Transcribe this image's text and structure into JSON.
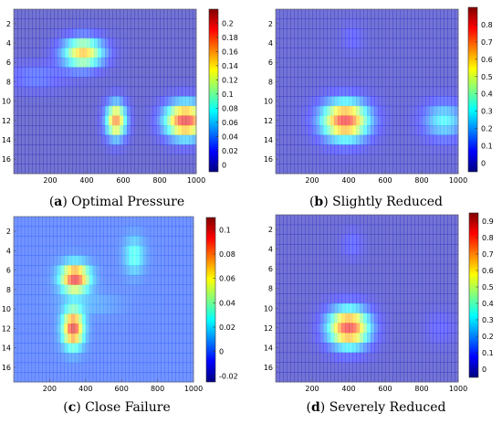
{
  "chart_data": [
    {
      "type": "heatmap",
      "caption_letter": "a",
      "caption_text": "Optimal Pressure",
      "xlim": [
        0,
        1000
      ],
      "ylim": [
        17.5,
        0.5
      ],
      "x_ticks": [
        "200",
        "400",
        "600",
        "800",
        "1000"
      ],
      "y_ticks": [
        "2",
        "4",
        "6",
        "8",
        "10",
        "12",
        "14",
        "16"
      ],
      "colorbar": {
        "min": -0.01,
        "max": 0.22,
        "ticks": [
          "0",
          "0.02",
          "0.04",
          "0.06",
          "0.08",
          "0.1",
          "0.12",
          "0.14",
          "0.16",
          "0.18",
          "0.2"
        ]
      },
      "background": 0.0,
      "blobs": [
        {
          "x": 380,
          "y": 5.0,
          "sx": 80,
          "sy": 1.1,
          "value": 0.15
        },
        {
          "x": 120,
          "y": 7.5,
          "sx": 120,
          "sy": 1.0,
          "value": 0.03
        },
        {
          "x": 560,
          "y": 12.0,
          "sx": 40,
          "sy": 1.3,
          "value": 0.17
        },
        {
          "x": 940,
          "y": 12.0,
          "sx": 80,
          "sy": 1.3,
          "value": 0.2
        }
      ]
    },
    {
      "type": "heatmap",
      "caption_letter": "b",
      "caption_text": "Slightly Reduced",
      "xlim": [
        0,
        1000
      ],
      "ylim": [
        17.5,
        0.5
      ],
      "x_ticks": [
        "200",
        "400",
        "600",
        "800",
        "1000"
      ],
      "y_ticks": [
        "2",
        "4",
        "6",
        "8",
        "10",
        "12",
        "14",
        "16"
      ],
      "colorbar": {
        "min": -0.05,
        "max": 0.9,
        "ticks": [
          "0",
          "0.1",
          "0.2",
          "0.3",
          "0.4",
          "0.5",
          "0.6",
          "0.7",
          "0.8"
        ]
      },
      "background": 0.0,
      "blobs": [
        {
          "x": 420,
          "y": 3.5,
          "sx": 40,
          "sy": 1.0,
          "value": 0.08
        },
        {
          "x": 380,
          "y": 12.0,
          "sx": 90,
          "sy": 1.4,
          "value": 0.8
        },
        {
          "x": 920,
          "y": 12.0,
          "sx": 80,
          "sy": 1.3,
          "value": 0.3
        }
      ]
    },
    {
      "type": "heatmap",
      "caption_letter": "c",
      "caption_text": "Close Failure",
      "xlim": [
        0,
        1000
      ],
      "ylim": [
        17.5,
        0.5
      ],
      "x_ticks": [
        "200",
        "400",
        "600",
        "800",
        "1000"
      ],
      "y_ticks": [
        "2",
        "4",
        "6",
        "8",
        "10",
        "12",
        "14",
        "16"
      ],
      "colorbar": {
        "min": -0.025,
        "max": 0.11,
        "ticks": [
          "-0.02",
          "0",
          "0.02",
          "0.04",
          "0.06",
          "0.08",
          "0.1"
        ]
      },
      "background": 0.0,
      "blobs": [
        {
          "x": 340,
          "y": 6.8,
          "sx": 55,
          "sy": 1.0,
          "value": 0.1
        },
        {
          "x": 330,
          "y": 12.0,
          "sx": 40,
          "sy": 1.3,
          "value": 0.1
        },
        {
          "x": 670,
          "y": 4.5,
          "sx": 40,
          "sy": 1.3,
          "value": 0.03
        },
        {
          "x": 420,
          "y": 9.5,
          "sx": 120,
          "sy": 0.8,
          "value": 0.01
        }
      ]
    },
    {
      "type": "heatmap",
      "caption_letter": "d",
      "caption_text": "Severely Reduced",
      "xlim": [
        0,
        1000
      ],
      "ylim": [
        17.5,
        0.5
      ],
      "x_ticks": [
        "200",
        "400",
        "600",
        "800",
        "1000"
      ],
      "y_ticks": [
        "2",
        "4",
        "6",
        "8",
        "10",
        "12",
        "14",
        "16"
      ],
      "colorbar": {
        "min": -0.05,
        "max": 0.95,
        "ticks": [
          "0",
          "0.1",
          "0.2",
          "0.3",
          "0.4",
          "0.5",
          "0.6",
          "0.7",
          "0.8",
          "0.9"
        ]
      },
      "background": 0.0,
      "blobs": [
        {
          "x": 420,
          "y": 3.5,
          "sx": 40,
          "sy": 1.0,
          "value": 0.1
        },
        {
          "x": 400,
          "y": 12.0,
          "sx": 80,
          "sy": 1.4,
          "value": 0.85
        },
        {
          "x": 900,
          "y": 12.0,
          "sx": 60,
          "sy": 1.2,
          "value": 0.08
        }
      ]
    }
  ]
}
